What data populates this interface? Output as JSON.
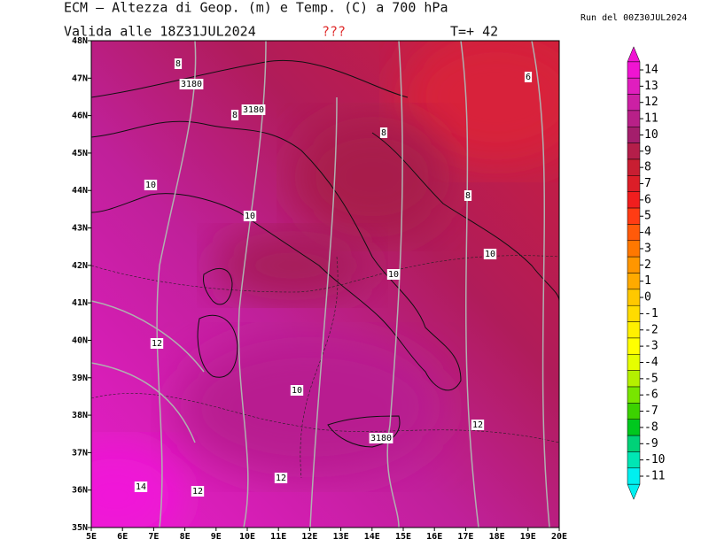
{
  "header": {
    "title": "ECM – Altezza di Geop. (m) e Temp. (C) a 700 hPa",
    "valid": "Valida alle 18Z31JUL2024",
    "flag": "???",
    "step": "T=+ 42",
    "run": "Run del 00Z30JUL2024"
  },
  "map": {
    "lat_labels": [
      "48N",
      "47N",
      "46N",
      "45N",
      "44N",
      "43N",
      "42N",
      "41N",
      "40N",
      "39N",
      "38N",
      "37N",
      "36N",
      "35N"
    ],
    "lon_labels": [
      "5E",
      "6E",
      "7E",
      "8E",
      "9E",
      "10E",
      "11E",
      "12E",
      "13E",
      "14E",
      "15E",
      "16E",
      "17E",
      "18E",
      "19E",
      "20E"
    ],
    "contour_labels": [
      "8",
      "3180",
      "8",
      "3180",
      "8",
      "6",
      "10",
      "10",
      "8",
      "10",
      "10",
      "12",
      "10",
      "12",
      "3180",
      "14",
      "12",
      "12"
    ]
  },
  "colorbar": {
    "labels": [
      14,
      13,
      12,
      11,
      10,
      9,
      8,
      7,
      6,
      5,
      4,
      3,
      2,
      1,
      0,
      -1,
      -2,
      -3,
      -4,
      -5,
      -6,
      -7,
      -8,
      -9,
      -10,
      -11
    ],
    "colors": [
      "#f014d2",
      "#e01ebe",
      "#cc20a4",
      "#b82088",
      "#a41e6c",
      "#b41e4a",
      "#c81e32",
      "#dc1e28",
      "#f01e1e",
      "#ff3c14",
      "#ff5a0a",
      "#ff7800",
      "#ff9600",
      "#ffaa00",
      "#ffc800",
      "#ffdc00",
      "#fff000",
      "#ffff00",
      "#e6ff00",
      "#b4f000",
      "#78e600",
      "#3cd200",
      "#00c81e",
      "#00d278",
      "#00e6b4",
      "#00f0f0"
    ]
  }
}
